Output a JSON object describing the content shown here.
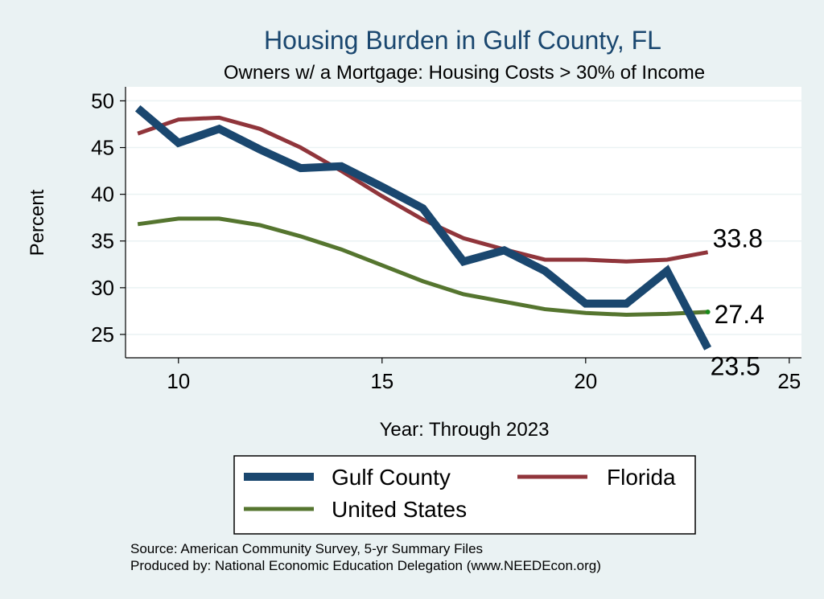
{
  "chart_data": {
    "type": "line",
    "title": "Housing Burden in Gulf County, FL",
    "subtitle": "Owners w/ a Mortgage: Housing Costs > 30% of Income",
    "xlabel": "Year: Through 2023",
    "ylabel": "Percent",
    "xlim": [
      8.7,
      25.3
    ],
    "ylim": [
      22.5,
      51.5
    ],
    "x_ticks": [
      10,
      15,
      20,
      25
    ],
    "y_ticks": [
      25,
      30,
      35,
      40,
      45,
      50
    ],
    "grid": true,
    "x": [
      9,
      10,
      11,
      12,
      13,
      14,
      15,
      16,
      17,
      18,
      19,
      20,
      21,
      22,
      23
    ],
    "series": [
      {
        "name": "Gulf County",
        "color": "#1a476f",
        "values": [
          49.2,
          45.5,
          47.0,
          44.8,
          42.8,
          43.0,
          40.8,
          38.5,
          32.8,
          34.0,
          31.8,
          28.3,
          28.3,
          31.8,
          23.5
        ],
        "end_label": "23.5"
      },
      {
        "name": "Florida",
        "color": "#90353b",
        "values": [
          46.5,
          48.0,
          48.2,
          47.0,
          45.0,
          42.5,
          39.8,
          37.3,
          35.3,
          34.1,
          33.0,
          33.0,
          32.8,
          33.0,
          33.8
        ],
        "end_label": "33.8"
      },
      {
        "name": "United States",
        "color": "#55752f",
        "values": [
          36.8,
          37.4,
          37.4,
          36.7,
          35.5,
          34.1,
          32.4,
          30.7,
          29.3,
          28.5,
          27.7,
          27.3,
          27.1,
          27.2,
          27.4
        ],
        "end_label": "27.4"
      }
    ],
    "legend": {
      "placement": "bottom",
      "entries": [
        "Gulf County",
        "Florida",
        "United States"
      ]
    }
  },
  "footer": {
    "source": "Source: American Community Survey, 5-yr Summary Files",
    "produced_by": "Produced by: National Economic Education Delegation (www.NEEDEcon.org)"
  },
  "colors": {
    "background": "#eaf2f3",
    "plot_background": "#ffffff",
    "title": "#1a476f",
    "grid": "#eaf2f3"
  }
}
